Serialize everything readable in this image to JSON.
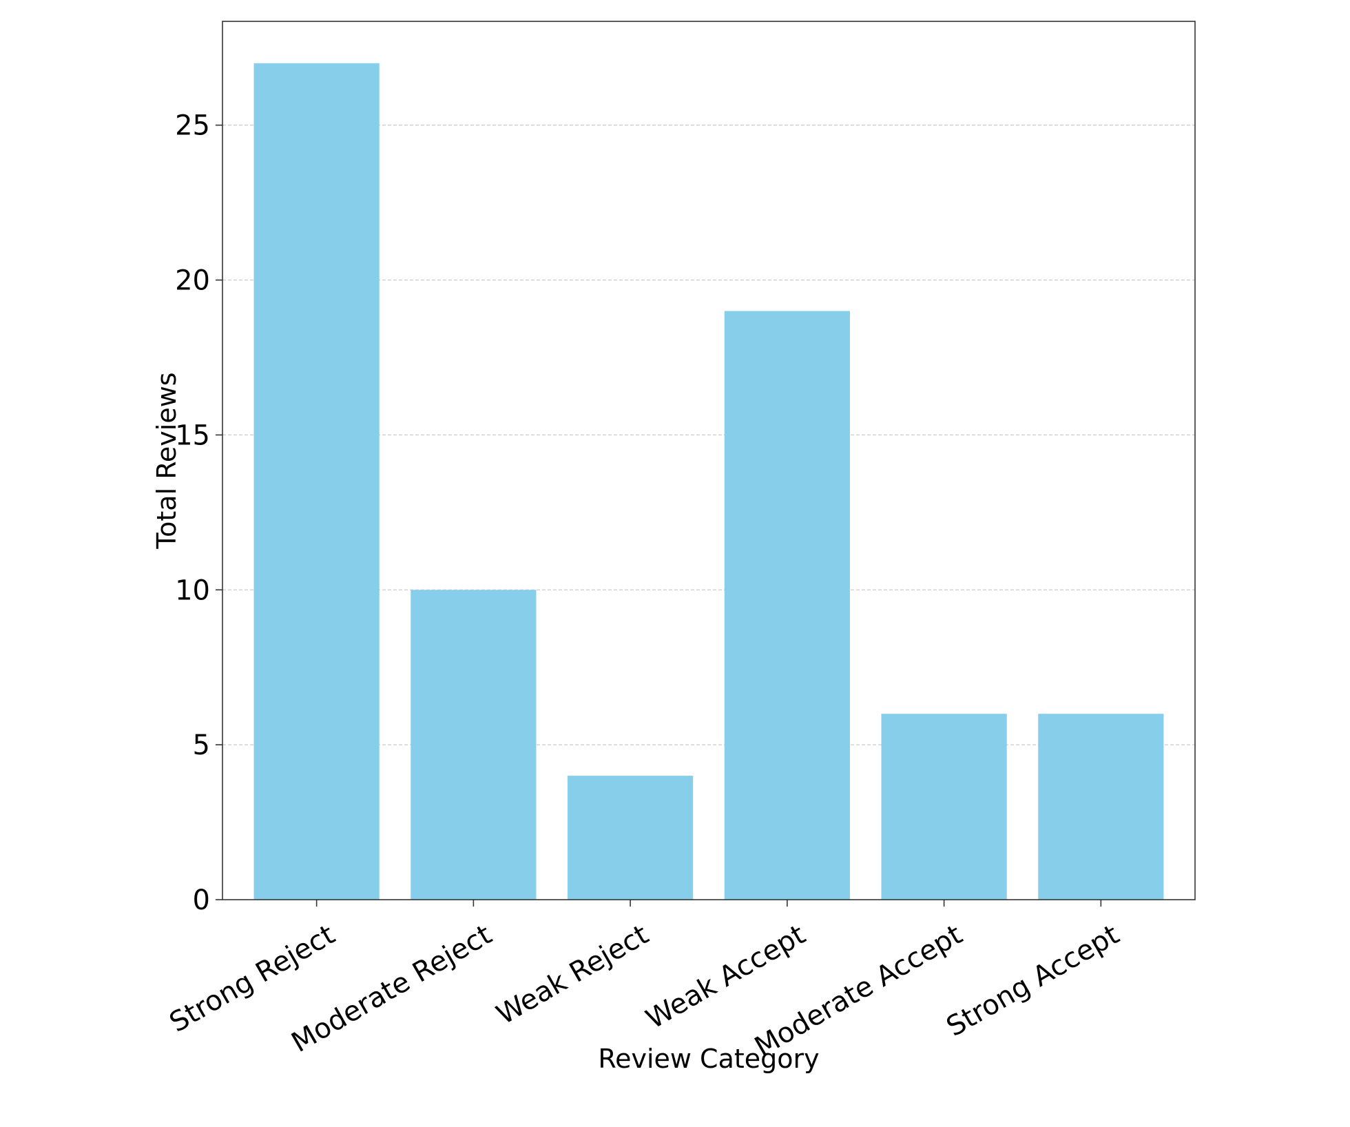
{
  "chart_data": {
    "type": "bar",
    "title": "",
    "xlabel": "Review Category",
    "ylabel": "Total Reviews",
    "categories": [
      "Strong Reject",
      "Moderate Reject",
      "Weak Reject",
      "Weak Accept",
      "Moderate Accept",
      "Strong Accept"
    ],
    "values": [
      27,
      10,
      4,
      19,
      6,
      6
    ],
    "ylim": [
      0,
      28.35
    ],
    "yticks": [
      0,
      5,
      10,
      15,
      20,
      25
    ],
    "grid": "y dashed",
    "bar_color": "#87CEEB",
    "legend": "none"
  }
}
